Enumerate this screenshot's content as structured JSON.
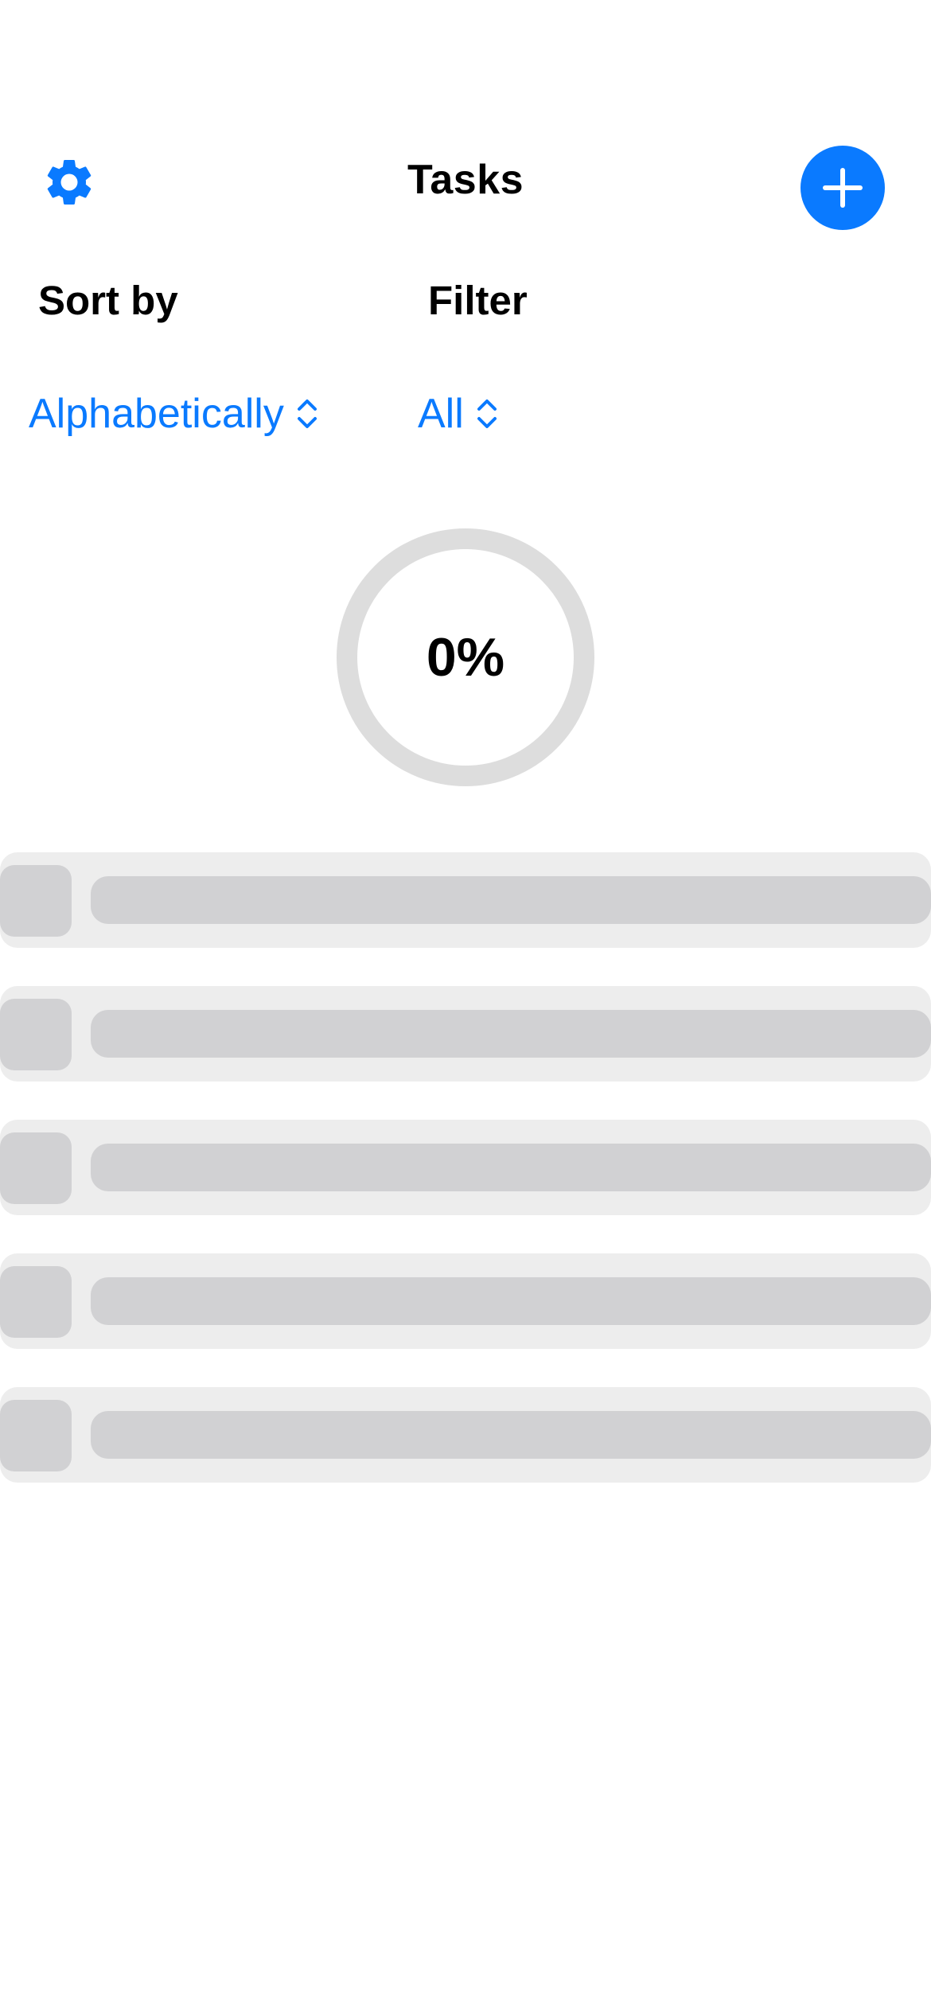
{
  "header": {
    "title": "Tasks",
    "settings_icon": "gear-icon",
    "add_icon": "plus-icon"
  },
  "controls": {
    "sort_label": "Sort by",
    "sort_value": "Alphabetically",
    "filter_label": "Filter",
    "filter_value": "All",
    "picker_icon": "chevron-up-down-icon"
  },
  "progress": {
    "value": 0,
    "label": "0%"
  },
  "task_list": {
    "state": "loading",
    "placeholder_rows": 5
  },
  "colors": {
    "accent": "#0A7AFF",
    "ring_track": "#DDDDDD",
    "row_background": "#EDEDED",
    "skeleton_fill": "#D1D1D3",
    "text": "#000000",
    "background": "#FFFFFF"
  }
}
